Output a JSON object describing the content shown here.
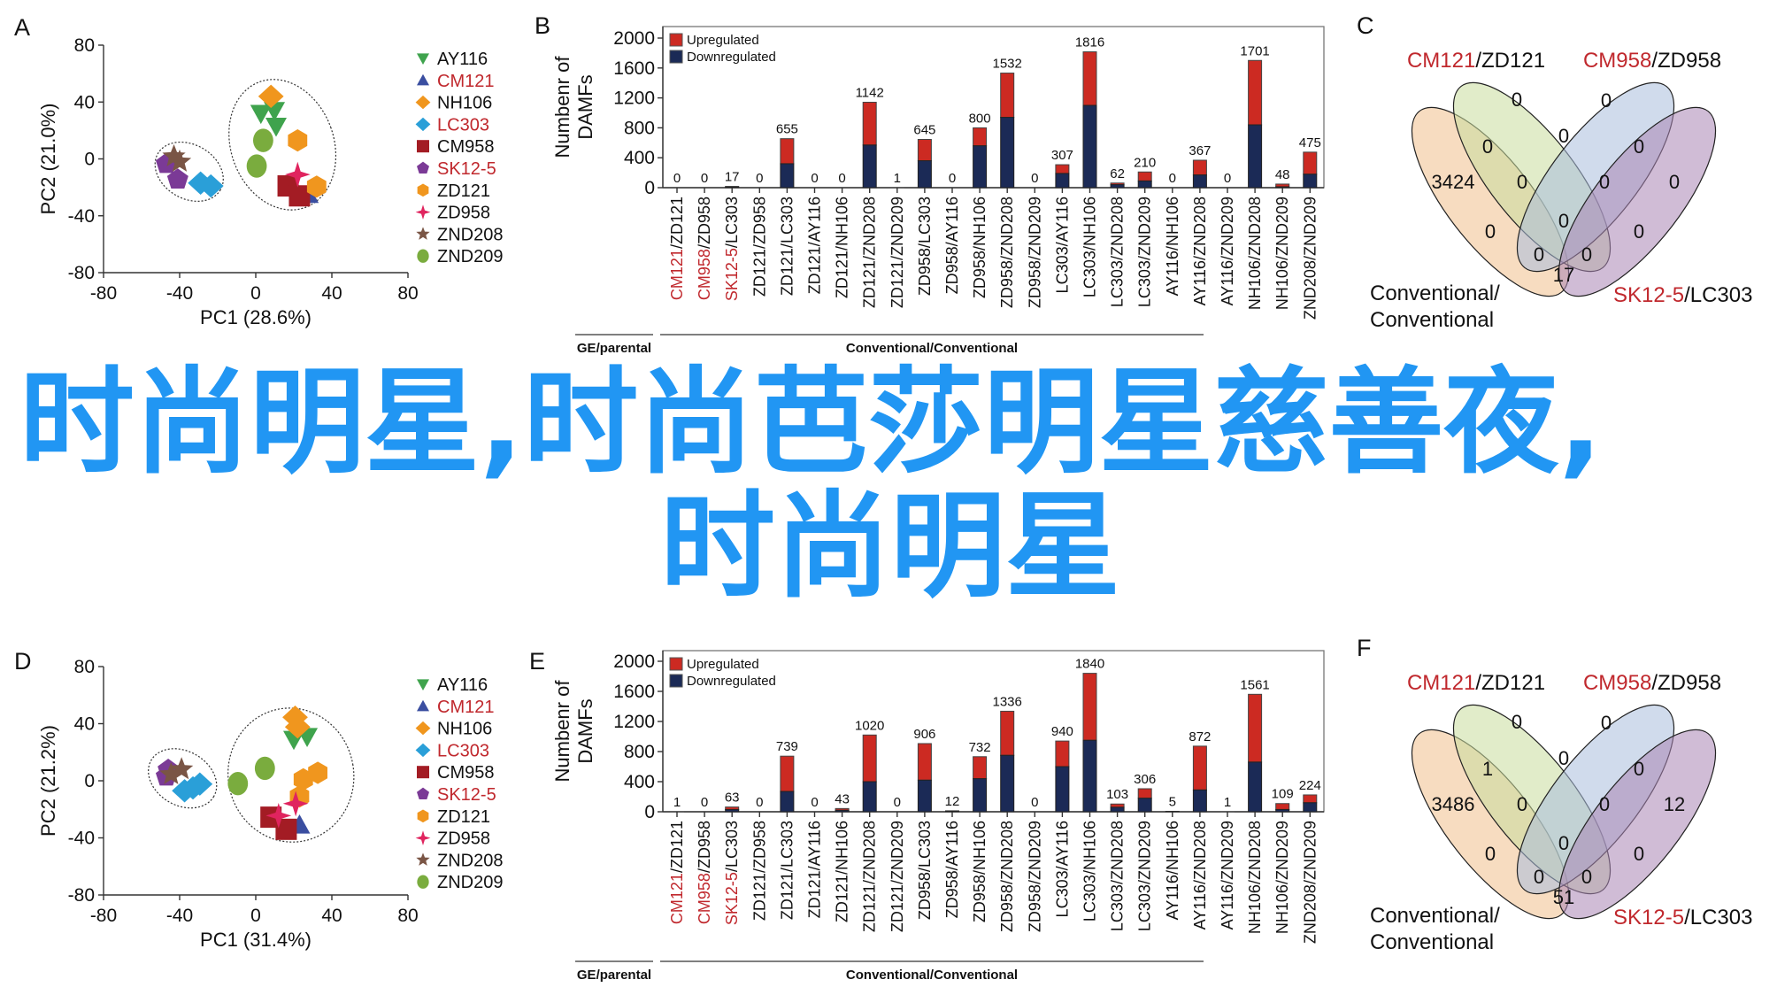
{
  "overlay": {
    "line1": "时尚明星,时尚芭莎明星慈善夜,",
    "line2": "时尚明星",
    "color": "#2196f3"
  },
  "colors": {
    "highlight_red": "#c0282d",
    "upregulated": "#cc2a22",
    "downregulated": "#1b2a56"
  },
  "chart_data": [
    {
      "panel": "A",
      "type": "scatter",
      "xlabel": "PC1 (28.6%)",
      "ylabel": "PC2 (21.0%)",
      "xlim": [
        -80,
        80
      ],
      "ylim": [
        -80,
        80
      ],
      "xticks": [
        -80,
        -40,
        0,
        40,
        80
      ],
      "yticks": [
        80,
        40,
        0,
        -40,
        -80
      ],
      "groups": [
        {
          "center": [
            -35,
            -9
          ],
          "semi": [
            19,
            19
          ]
        },
        {
          "center": [
            14,
            10
          ],
          "semi": [
            27,
            47
          ]
        }
      ],
      "series": [
        {
          "name": "AY116",
          "color": "#3fa34d",
          "marker": "triangle-down",
          "label_color": "#111111",
          "points": [
            [
              2.7,
              32
            ],
            [
              9.8,
              34
            ],
            [
              10.7,
              23
            ]
          ]
        },
        {
          "name": "CM121",
          "color": "#3a4ea0",
          "marker": "triangle-up",
          "label_color": "#c0282d",
          "points": [
            [
              27.5,
              -25
            ]
          ]
        },
        {
          "name": "NH106",
          "color": "#f0961e",
          "marker": "diamond",
          "label_color": "#111111",
          "points": [
            [
              8,
              44
            ]
          ]
        },
        {
          "name": "LC303",
          "color": "#2a9fd8",
          "marker": "diamond",
          "label_color": "#c0282d",
          "points": [
            [
              -29,
              -17
            ],
            [
              -23.6,
              -19
            ]
          ]
        },
        {
          "name": "CM958",
          "color": "#a31c24",
          "marker": "square",
          "label_color": "#111111",
          "points": [
            [
              17,
              -19
            ],
            [
              23,
              -26
            ]
          ]
        },
        {
          "name": "SK12-5",
          "color": "#7b3a96",
          "marker": "pentagon",
          "label_color": "#c0282d",
          "points": [
            [
              -47,
              -3.5
            ],
            [
              -41,
              -14.5
            ]
          ]
        },
        {
          "name": "ZD121",
          "color": "#f0961e",
          "marker": "hexagon",
          "label_color": "#111111",
          "points": [
            [
              22,
              13
            ],
            [
              32,
              -19.5
            ]
          ]
        },
        {
          "name": "ZD958",
          "color": "#e0245e",
          "marker": "star4",
          "label_color": "#111111",
          "points": [
            [
              22,
              -11
            ]
          ]
        },
        {
          "name": "ZND208",
          "color": "#7a5545",
          "marker": "star5",
          "label_color": "#111111",
          "points": [
            [
              -43,
              1.7
            ],
            [
              -40,
              -2
            ]
          ]
        },
        {
          "name": "ZND209",
          "color": "#7aac3e",
          "marker": "circle",
          "label_color": "#111111",
          "points": [
            [
              3.9,
              13
            ],
            [
              0.5,
              -5
            ]
          ]
        }
      ]
    },
    {
      "panel": "B",
      "type": "bar",
      "stacked": true,
      "ylabel_lines": [
        "Numbenr of",
        "DAMFs"
      ],
      "ylim": [
        0,
        2000
      ],
      "yticks": [
        0,
        400,
        800,
        1200,
        1600,
        2000
      ],
      "legend": [
        "Upregulated",
        "Downregulated"
      ],
      "separator": "/",
      "categories": [
        [
          "CM121",
          "ZD121"
        ],
        [
          "CM958",
          "ZD958"
        ],
        [
          "SK12-5",
          "LC303"
        ],
        [
          "ZD121",
          "ZD958"
        ],
        [
          "ZD121",
          "LC303"
        ],
        [
          "ZD121",
          "AY116"
        ],
        [
          "ZD121",
          "NH106"
        ],
        [
          "ZD121",
          "ZND208"
        ],
        [
          "ZD121",
          "ZND209"
        ],
        [
          "ZD958",
          "LC303"
        ],
        [
          "ZD958",
          "AY116"
        ],
        [
          "ZD958",
          "NH106"
        ],
        [
          "ZD958",
          "ZND208"
        ],
        [
          "ZD958",
          "ZND209"
        ],
        [
          "LC303",
          "AY116"
        ],
        [
          "LC303",
          "NH106"
        ],
        [
          "LC303",
          "ZND208"
        ],
        [
          "LC303",
          "ZND209"
        ],
        [
          "AY116",
          "NH106"
        ],
        [
          "AY116",
          "ZND208"
        ],
        [
          "AY116",
          "ZND209"
        ],
        [
          "NH106",
          "ZND208"
        ],
        [
          "NH106",
          "ZND209"
        ],
        [
          "ZND208",
          "ZND209"
        ]
      ],
      "red_first_part": [
        true,
        true,
        true,
        false,
        false,
        false,
        false,
        false,
        false,
        false,
        false,
        false,
        false,
        false,
        false,
        false,
        false,
        false,
        false,
        false,
        false,
        false,
        false,
        false
      ],
      "totals": [
        0,
        0,
        17,
        0,
        655,
        0,
        0,
        1142,
        1,
        645,
        0,
        800,
        1532,
        0,
        307,
        1816,
        62,
        210,
        0,
        367,
        0,
        1701,
        48,
        475
      ],
      "downregulated": [
        0,
        0,
        8,
        0,
        320,
        0,
        0,
        570,
        0,
        360,
        0,
        560,
        940,
        0,
        190,
        1100,
        40,
        90,
        0,
        170,
        0,
        840,
        12,
        180
      ],
      "category_groups": [
        {
          "label": "GE/parental",
          "span": [
            0,
            2
          ]
        },
        {
          "label": "Conventional/Conventional",
          "span": [
            3,
            23
          ]
        }
      ]
    },
    {
      "panel": "C",
      "type": "venn",
      "sets": [
        {
          "red": "CM121",
          "black": "ZD121"
        },
        {
          "red": "CM958",
          "black": "ZD958"
        },
        {
          "red": "SK12-5",
          "black": "LC303"
        },
        {
          "lines": [
            "Conventional/",
            "Conventional"
          ]
        }
      ],
      "separator": "/",
      "regions": [
        0,
        0,
        0,
        0,
        0,
        3424,
        0,
        0,
        0,
        0,
        0,
        0,
        0,
        0,
        17
      ]
    },
    {
      "panel": "D",
      "type": "scatter",
      "xlabel": "PC1 (31.4%)",
      "ylabel": "PC2 (21.2%)",
      "xlim": [
        -80,
        80
      ],
      "ylim": [
        -80,
        80
      ],
      "xticks": [
        -80,
        -40,
        0,
        40,
        80
      ],
      "yticks": [
        80,
        40,
        0,
        -40,
        -80
      ],
      "groups": [
        {
          "center": [
            -38.5,
            1.7
          ],
          "semi": [
            19,
            19
          ]
        },
        {
          "center": [
            18.5,
            4
          ],
          "semi": [
            33,
            47
          ]
        }
      ],
      "series": [
        {
          "name": "AY116",
          "color": "#3fa34d",
          "marker": "triangle-down",
          "label_color": "#111111",
          "points": [
            [
              20,
              29
            ],
            [
              27,
              31
            ]
          ]
        },
        {
          "name": "CM121",
          "color": "#3a4ea0",
          "marker": "triangle-up",
          "label_color": "#c0282d",
          "points": [
            [
              23,
              -31
            ]
          ]
        },
        {
          "name": "NH106",
          "color": "#f0961e",
          "marker": "diamond",
          "label_color": "#111111",
          "points": [
            [
              20.7,
              44.5
            ],
            [
              22,
              37.7
            ]
          ]
        },
        {
          "name": "LC303",
          "color": "#2a9fd8",
          "marker": "diamond",
          "label_color": "#c0282d",
          "points": [
            [
              -37.4,
              -7
            ],
            [
              -33,
              -5
            ],
            [
              -29.4,
              -2.3
            ]
          ]
        },
        {
          "name": "CM958",
          "color": "#a31c24",
          "marker": "square",
          "label_color": "#111111",
          "points": [
            [
              8,
              -25.5
            ],
            [
              16,
              -34
            ]
          ]
        },
        {
          "name": "SK12-5",
          "color": "#7b3a96",
          "marker": "pentagon",
          "label_color": "#c0282d",
          "points": [
            [
              -46,
              7.7
            ],
            [
              -47,
              3
            ]
          ]
        },
        {
          "name": "ZD121",
          "color": "#f0961e",
          "marker": "hexagon",
          "label_color": "#111111",
          "points": [
            [
              25,
              1
            ],
            [
              32.6,
              5.6
            ],
            [
              23,
              -11
            ]
          ]
        },
        {
          "name": "ZD958",
          "color": "#e0245e",
          "marker": "star4",
          "label_color": "#111111",
          "points": [
            [
              21,
              -16
            ],
            [
              12,
              -24.4
            ]
          ]
        },
        {
          "name": "ZND208",
          "color": "#7a5545",
          "marker": "star5",
          "label_color": "#111111",
          "points": [
            [
              -39,
              8
            ],
            [
              -44.5,
              4.5
            ]
          ]
        },
        {
          "name": "ZND209",
          "color": "#7aac3e",
          "marker": "circle",
          "label_color": "#111111",
          "points": [
            [
              4.8,
              8.7
            ],
            [
              -9.4,
              -2
            ]
          ]
        }
      ]
    },
    {
      "panel": "E",
      "type": "bar",
      "stacked": true,
      "ylabel_lines": [
        "Numbenr of",
        "DAMFs"
      ],
      "ylim": [
        0,
        2000
      ],
      "yticks": [
        0,
        400,
        800,
        1200,
        1600,
        2000
      ],
      "legend": [
        "Upregulated",
        "Downregulated"
      ],
      "separator": "/",
      "categories": [
        [
          "CM121",
          "ZD121"
        ],
        [
          "CM958",
          "ZD958"
        ],
        [
          "SK12-5",
          "LC303"
        ],
        [
          "ZD121",
          "ZD958"
        ],
        [
          "ZD121",
          "LC303"
        ],
        [
          "ZD121",
          "AY116"
        ],
        [
          "ZD121",
          "NH106"
        ],
        [
          "ZD121",
          "ZND208"
        ],
        [
          "ZD121",
          "ZND209"
        ],
        [
          "ZD958",
          "LC303"
        ],
        [
          "ZD958",
          "AY116"
        ],
        [
          "ZD958",
          "NH106"
        ],
        [
          "ZD958",
          "ZND208"
        ],
        [
          "ZD958",
          "ZND209"
        ],
        [
          "LC303",
          "AY116"
        ],
        [
          "LC303",
          "NH106"
        ],
        [
          "LC303",
          "ZND208"
        ],
        [
          "LC303",
          "ZND209"
        ],
        [
          "AY116",
          "NH106"
        ],
        [
          "AY116",
          "ZND208"
        ],
        [
          "AY116",
          "ZND209"
        ],
        [
          "NH106",
          "ZND208"
        ],
        [
          "NH106",
          "ZND209"
        ],
        [
          "ZND208",
          "ZND209"
        ]
      ],
      "red_first_part": [
        true,
        true,
        true,
        false,
        false,
        false,
        false,
        false,
        false,
        false,
        false,
        false,
        false,
        false,
        false,
        false,
        false,
        false,
        false,
        false,
        false,
        false,
        false,
        false
      ],
      "totals": [
        1,
        0,
        63,
        0,
        739,
        0,
        43,
        1020,
        0,
        906,
        12,
        732,
        1336,
        0,
        940,
        1840,
        103,
        306,
        5,
        872,
        1,
        1561,
        109,
        224
      ],
      "downregulated": [
        0,
        0,
        30,
        0,
        270,
        0,
        20,
        400,
        0,
        420,
        12,
        440,
        750,
        0,
        600,
        950,
        60,
        180,
        5,
        290,
        0,
        660,
        30,
        120
      ],
      "category_groups": [
        {
          "label": "GE/parental",
          "span": [
            0,
            2
          ]
        },
        {
          "label": "Conventional/Conventional",
          "span": [
            3,
            23
          ]
        }
      ]
    },
    {
      "panel": "F",
      "type": "venn",
      "sets": [
        {
          "red": "CM121",
          "black": "ZD121"
        },
        {
          "red": "CM958",
          "black": "ZD958"
        },
        {
          "red": "SK12-5",
          "black": "LC303"
        },
        {
          "lines": [
            "Conventional/",
            "Conventional"
          ]
        }
      ],
      "separator": "/",
      "regions": [
        0,
        0,
        1,
        0,
        0,
        3486,
        0,
        0,
        12,
        0,
        0,
        0,
        0,
        0,
        51
      ]
    }
  ]
}
